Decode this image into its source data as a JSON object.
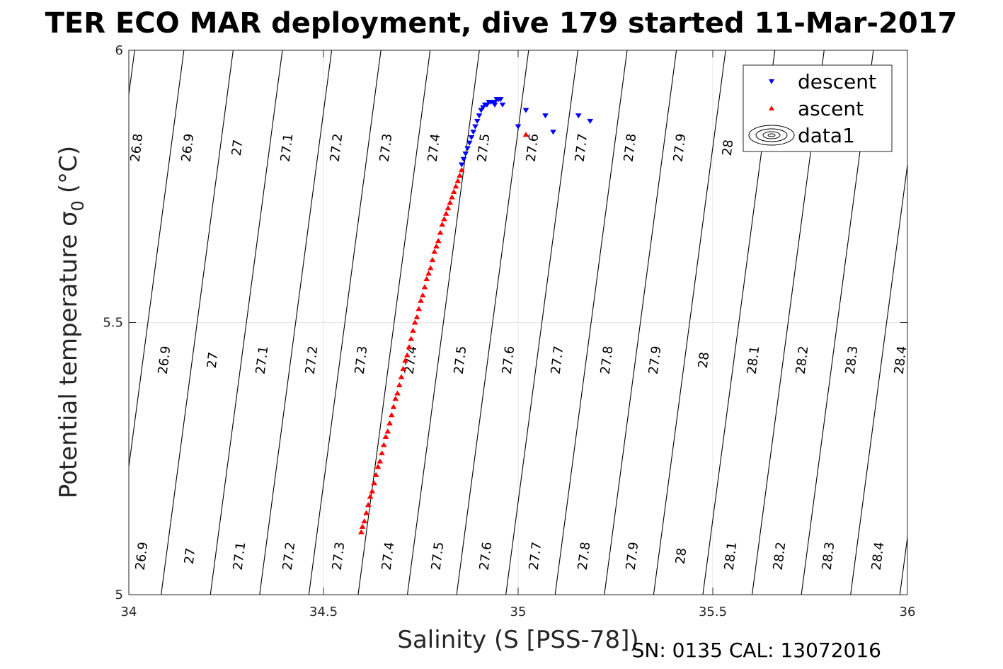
{
  "chart_data": {
    "type": "scatter",
    "title": "TER ECO MAR deployment, dive 179 started 11-Mar-2017",
    "xlabel": "Salinity (S [PSS-78])",
    "ylabel_main": "Potential temperature σ",
    "ylabel_sub": "0",
    "ylabel_unit": "(°C)",
    "footer": "SN: 0135  CAL: 13072016",
    "xlim": [
      34,
      36
    ],
    "ylim": [
      5,
      6
    ],
    "xticks": [
      34,
      34.5,
      35,
      35.5,
      36
    ],
    "xtick_labels": [
      "34",
      "34.5",
      "35",
      "35.5",
      "36"
    ],
    "yticks": [
      5,
      5.5,
      6
    ],
    "ytick_labels": [
      "5",
      "5.5",
      "6"
    ],
    "grid": true,
    "legend_position": "top-right",
    "legend": [
      {
        "name": "descent",
        "marker": "triangle-down",
        "color": "#0000ff"
      },
      {
        "name": "ascent",
        "marker": "triangle-up",
        "color": "#ff0000"
      },
      {
        "name": "data1",
        "marker": "contour",
        "color": "#000000"
      }
    ],
    "contours": {
      "levels": [
        26.8,
        26.9,
        27.0,
        27.1,
        27.2,
        27.3,
        27.4,
        27.5,
        27.6,
        27.7,
        27.8,
        27.9,
        28.0,
        28.1,
        28.2,
        28.3,
        28.4
      ],
      "anchor_salinity_at_6": [
        34.04,
        34.17,
        34.3,
        34.42,
        34.55,
        34.67,
        34.8,
        34.93,
        35.06,
        35.18,
        35.31,
        35.44
      ],
      "slope_salinity_per_degC": 0.185,
      "spacing_salinity": 0.1265,
      "label_rows": [
        {
          "y": 5.82,
          "labels": [
            "26.8",
            "26.9",
            "27",
            "27.1",
            "27.2",
            "27.3",
            "27.4",
            "27.5",
            "27.6",
            "27.7",
            "27.8",
            "27.9",
            "28"
          ]
        },
        {
          "y": 5.43,
          "labels": [
            "26.9",
            "27",
            "27.1",
            "27.2",
            "27.3",
            "27.4",
            "27.5",
            "27.6",
            "27.7",
            "27.8",
            "27.9",
            "28",
            "28.1",
            "28.2",
            "28.3",
            "28.4"
          ]
        },
        {
          "y": 5.07,
          "labels": [
            "26.9",
            "27",
            "27.1",
            "27.2",
            "27.3",
            "27.4",
            "27.5",
            "27.6",
            "27.7",
            "27.8",
            "27.9",
            "28",
            "28.1",
            "28.2",
            "28.3",
            "28.4"
          ]
        }
      ]
    },
    "series": [
      {
        "name": "descent",
        "color": "#0000ff",
        "marker": "triangle-down",
        "points": [
          [
            34.855,
            5.79
          ],
          [
            34.86,
            5.8
          ],
          [
            34.865,
            5.81
          ],
          [
            34.87,
            5.82
          ],
          [
            34.875,
            5.83
          ],
          [
            34.88,
            5.84
          ],
          [
            34.885,
            5.85
          ],
          [
            34.89,
            5.86
          ],
          [
            34.895,
            5.87
          ],
          [
            34.9,
            5.88
          ],
          [
            34.905,
            5.89
          ],
          [
            34.91,
            5.895
          ],
          [
            34.915,
            5.9
          ],
          [
            34.92,
            5.9
          ],
          [
            34.925,
            5.905
          ],
          [
            34.93,
            5.905
          ],
          [
            34.935,
            5.905
          ],
          [
            34.94,
            5.905
          ],
          [
            34.945,
            5.91
          ],
          [
            34.95,
            5.91
          ],
          [
            34.955,
            5.91
          ],
          [
            34.96,
            5.9
          ],
          [
            34.94,
            5.9
          ],
          [
            34.92,
            5.9
          ],
          [
            35.0,
            5.86
          ],
          [
            35.02,
            5.89
          ],
          [
            35.07,
            5.88
          ],
          [
            35.09,
            5.85
          ],
          [
            35.155,
            5.88
          ],
          [
            35.185,
            5.87
          ]
        ]
      },
      {
        "name": "ascent",
        "color": "#ff0000",
        "marker": "triangle-up",
        "points": [
          [
            34.855,
            5.78
          ],
          [
            34.85,
            5.77
          ],
          [
            34.845,
            5.76
          ],
          [
            34.84,
            5.75
          ],
          [
            34.835,
            5.74
          ],
          [
            34.83,
            5.73
          ],
          [
            34.825,
            5.72
          ],
          [
            34.82,
            5.71
          ],
          [
            34.815,
            5.7
          ],
          [
            34.81,
            5.69
          ],
          [
            34.805,
            5.68
          ],
          [
            34.8,
            5.665
          ],
          [
            34.795,
            5.65
          ],
          [
            34.79,
            5.64
          ],
          [
            34.785,
            5.63
          ],
          [
            34.78,
            5.615
          ],
          [
            34.775,
            5.6
          ],
          [
            34.77,
            5.59
          ],
          [
            34.765,
            5.58
          ],
          [
            34.76,
            5.565
          ],
          [
            34.755,
            5.55
          ],
          [
            34.75,
            5.54
          ],
          [
            34.745,
            5.525
          ],
          [
            34.74,
            5.51
          ],
          [
            34.735,
            5.5
          ],
          [
            34.73,
            5.485
          ],
          [
            34.725,
            5.47
          ],
          [
            34.72,
            5.455
          ],
          [
            34.715,
            5.44
          ],
          [
            34.71,
            5.43
          ],
          [
            34.705,
            5.415
          ],
          [
            34.7,
            5.4
          ],
          [
            34.695,
            5.385
          ],
          [
            34.69,
            5.37
          ],
          [
            34.685,
            5.36
          ],
          [
            34.68,
            5.345
          ],
          [
            34.675,
            5.33
          ],
          [
            34.67,
            5.315
          ],
          [
            34.665,
            5.3
          ],
          [
            34.66,
            5.29
          ],
          [
            34.655,
            5.275
          ],
          [
            34.65,
            5.26
          ],
          [
            34.645,
            5.245
          ],
          [
            34.64,
            5.235
          ],
          [
            34.635,
            5.22
          ],
          [
            34.63,
            5.205
          ],
          [
            34.625,
            5.19
          ],
          [
            34.62,
            5.18
          ],
          [
            34.615,
            5.165
          ],
          [
            34.61,
            5.15
          ],
          [
            34.605,
            5.135
          ],
          [
            34.6,
            5.125
          ],
          [
            34.597,
            5.115
          ],
          [
            35.02,
            5.845
          ]
        ]
      }
    ]
  }
}
